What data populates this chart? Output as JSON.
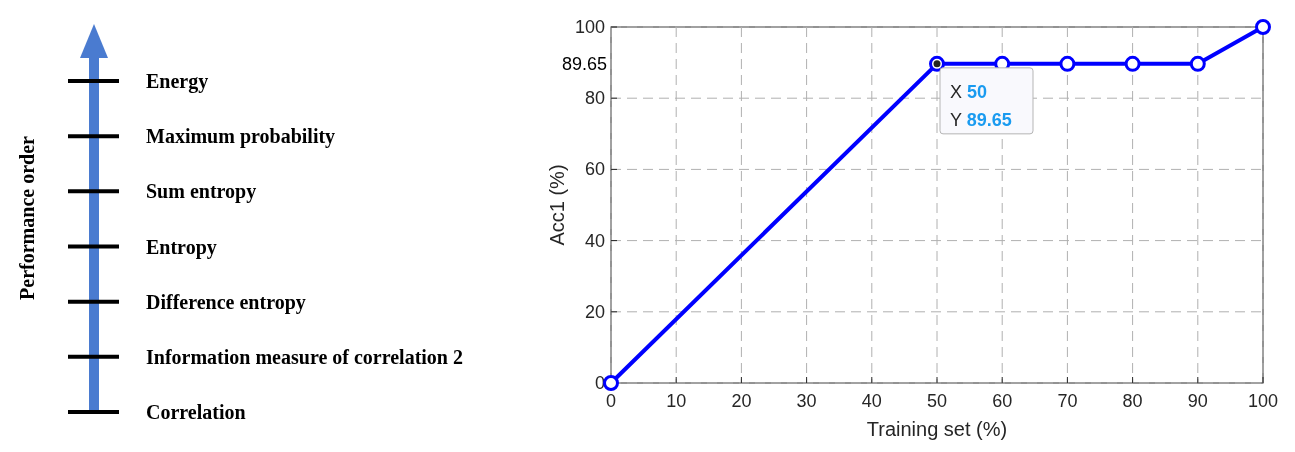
{
  "chart_data": [
    {
      "type": "other",
      "ylabel": "Performance order",
      "annotations": [
        "Energy",
        "Maximum probability",
        "Sum entropy",
        "Entropy",
        "Difference entropy",
        "Information measure of correlation 2",
        "Correlation"
      ]
    },
    {
      "type": "line",
      "x": [
        0,
        50,
        60,
        70,
        80,
        90,
        100
      ],
      "series": [
        {
          "color": "#0000ff",
          "values": [
            0,
            89.65,
            89.65,
            89.65,
            89.65,
            89.65,
            100
          ]
        }
      ],
      "xlabel": "Training set (%)",
      "ylabel": "Acc1 (%)",
      "xlim": [
        0,
        100
      ],
      "ylim": [
        0,
        100
      ],
      "xticks": [
        0,
        10,
        20,
        30,
        40,
        50,
        60,
        70,
        80,
        90,
        100
      ],
      "yticks": [
        0,
        20,
        40,
        60,
        80,
        100
      ],
      "grid": true,
      "marker": "circle",
      "line_style": "solid",
      "annotations": [
        "89.65",
        {
          "text": "X 50\nY 89.65",
          "x": 50,
          "y": 89.65
        }
      ]
    }
  ]
}
